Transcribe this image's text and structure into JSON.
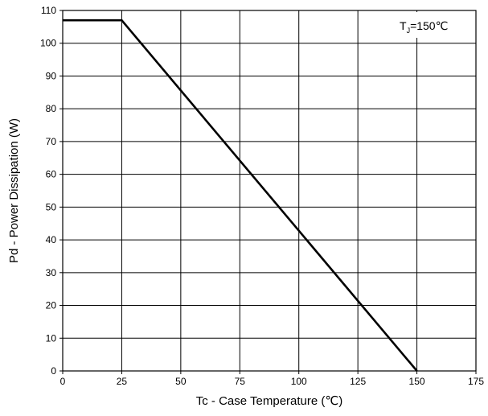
{
  "chart_data": {
    "type": "line",
    "title": "",
    "xlabel": "Tc - Case Temperature (℃)",
    "ylabel": "Pd - Power Dissipation  (W)",
    "xlim": [
      0,
      175
    ],
    "ylim": [
      0,
      110
    ],
    "x_ticks": [
      0,
      25,
      50,
      75,
      100,
      125,
      150,
      175
    ],
    "y_ticks": [
      0,
      10,
      20,
      30,
      40,
      50,
      60,
      70,
      80,
      90,
      100,
      110
    ],
    "grid": true,
    "legend": "none",
    "series": [
      {
        "name": "",
        "color": "#000000",
        "points": [
          {
            "x": 0,
            "y": 107
          },
          {
            "x": 25,
            "y": 107
          },
          {
            "x": 150,
            "y": 0
          }
        ]
      }
    ],
    "annotation": {
      "main": "T",
      "subscript": "J",
      "value": "=150℃",
      "placement": "top-right"
    }
  }
}
